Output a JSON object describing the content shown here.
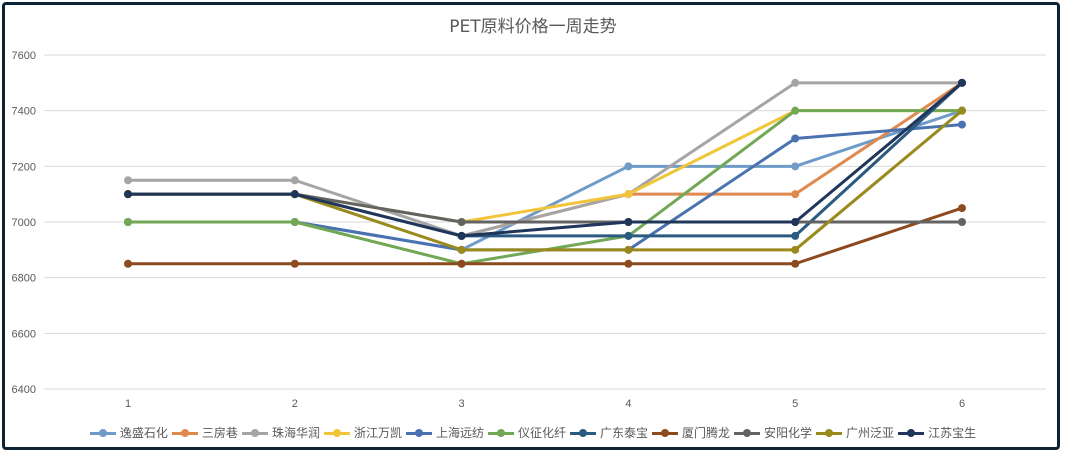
{
  "chart_data": {
    "type": "line",
    "title": "PET原料价格一周走势",
    "xlabel": "",
    "ylabel": "",
    "x": [
      "1",
      "2",
      "3",
      "4",
      "5",
      "6"
    ],
    "ylim": [
      6400,
      7600
    ],
    "yticks": [
      6400,
      6600,
      6800,
      7000,
      7200,
      7400,
      7600
    ],
    "grid": true,
    "legend_position": "bottom",
    "series": [
      {
        "name": "逸盛石化",
        "color": "#6f9bc8",
        "values": [
          7000,
          7000,
          6900,
          7200,
          7200,
          7400
        ]
      },
      {
        "name": "三房巷",
        "color": "#e0894f",
        "values": [
          7100,
          7100,
          6950,
          7100,
          7100,
          7500
        ]
      },
      {
        "name": "珠海华润",
        "color": "#a5a5a5",
        "values": [
          7150,
          7150,
          6950,
          7100,
          7500,
          7500
        ]
      },
      {
        "name": "浙江万凯",
        "color": "#f2c43a",
        "values": [
          7100,
          7100,
          7000,
          7100,
          7400,
          7400
        ]
      },
      {
        "name": "上海远纺",
        "color": "#4a72b0",
        "values": [
          7000,
          7000,
          6900,
          6900,
          7300,
          7350
        ]
      },
      {
        "name": "仪征化纤",
        "color": "#72a855",
        "values": [
          7000,
          7000,
          6850,
          6950,
          7400,
          7400
        ]
      },
      {
        "name": "广东泰宝",
        "color": "#2a5a80",
        "values": [
          7100,
          7100,
          6950,
          6950,
          6950,
          7500
        ]
      },
      {
        "name": "厦门腾龙",
        "color": "#8c4a1e",
        "values": [
          6850,
          6850,
          6850,
          6850,
          6850,
          7050
        ]
      },
      {
        "name": "安阳化学",
        "color": "#636363",
        "values": [
          7100,
          7100,
          7000,
          7000,
          7000,
          7000
        ]
      },
      {
        "name": "广州泛亚",
        "color": "#9a8a1e",
        "values": [
          7100,
          7100,
          6900,
          6900,
          6900,
          7400
        ]
      },
      {
        "name": "江苏宝生",
        "color": "#1f3559",
        "values": [
          7100,
          7100,
          6950,
          7000,
          7000,
          7500
        ]
      }
    ]
  }
}
